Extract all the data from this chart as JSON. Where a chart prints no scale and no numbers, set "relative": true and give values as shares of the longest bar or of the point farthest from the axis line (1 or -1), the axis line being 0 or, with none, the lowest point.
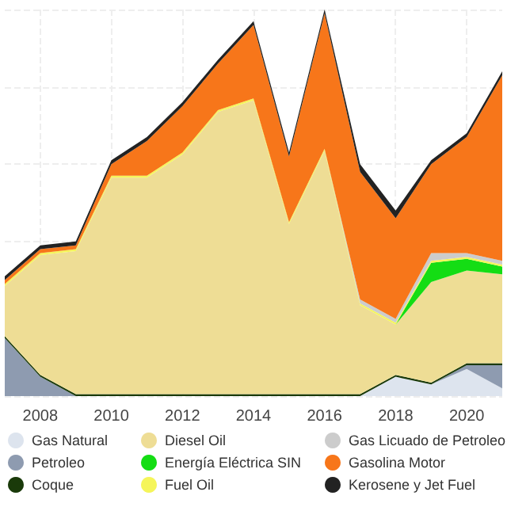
{
  "chart_data": {
    "type": "area",
    "stacked": true,
    "relative": true,
    "grid": true,
    "legend": "bottom",
    "marker": "none",
    "categories": [
      null,
      "2008",
      null,
      "2010",
      null,
      "2012",
      null,
      "2014",
      null,
      "2016",
      null,
      "2018",
      null,
      "2020",
      null
    ],
    "series": [
      {
        "name": "Gas Natural",
        "color": "#dde4ee",
        "values": [
          0,
          0,
          0,
          0,
          0,
          0,
          0,
          0,
          0,
          0,
          0,
          0.05,
          0.03,
          0.07,
          0.02
        ]
      },
      {
        "name": "Petroleo",
        "color": "#8e9bb0",
        "values": [
          0.15,
          0.05,
          0,
          0,
          0,
          0,
          0,
          0,
          0,
          0,
          0,
          0,
          0,
          0.01,
          0.06
        ]
      },
      {
        "name": "Coque",
        "color": "#1a3a0a",
        "values": [
          0.005,
          0.005,
          0.005,
          0.005,
          0.005,
          0.005,
          0.005,
          0.005,
          0.005,
          0.005,
          0.005,
          0.005,
          0.005,
          0.005,
          0.005
        ]
      },
      {
        "name": "Diesel Oil",
        "color": "#eedd95",
        "values": [
          0.13,
          0.31,
          0.37,
          0.56,
          0.56,
          0.62,
          0.73,
          0.76,
          0.44,
          0.63,
          0.23,
          0.13,
          0.26,
          0.24,
          0.23
        ]
      },
      {
        "name": "Energía Eléctrica SIN",
        "color": "#14dd14",
        "values": [
          0,
          0,
          0,
          0,
          0,
          0,
          0,
          0,
          0,
          0,
          0,
          0,
          0.05,
          0.03,
          0.02
        ]
      },
      {
        "name": "Fuel Oil",
        "color": "#f5f55a",
        "values": [
          0.005,
          0.005,
          0.005,
          0.005,
          0.005,
          0.005,
          0.005,
          0.005,
          0.005,
          0.005,
          0.005,
          0.005,
          0.005,
          0.005,
          0.005
        ]
      },
      {
        "name": "Gas Licuado de Petroleo",
        "color": "#cccccc",
        "values": [
          0,
          0,
          0,
          0,
          0,
          0,
          0,
          0,
          0,
          0,
          0.01,
          0.01,
          0.02,
          0.01,
          0.01
        ]
      },
      {
        "name": "Gasolina Motor",
        "color": "#f7761a",
        "values": [
          0.01,
          0.01,
          0.01,
          0.03,
          0.09,
          0.12,
          0.12,
          0.19,
          0.17,
          0.35,
          0.33,
          0.26,
          0.23,
          0.3,
          0.48
        ]
      },
      {
        "name": "Kerosene y Jet Fuel",
        "color": "#222222",
        "values": [
          0.01,
          0.01,
          0.01,
          0.01,
          0.01,
          0.01,
          0.01,
          0.01,
          0.01,
          0.01,
          0.02,
          0.02,
          0.01,
          0.01,
          0.01
        ]
      }
    ]
  }
}
